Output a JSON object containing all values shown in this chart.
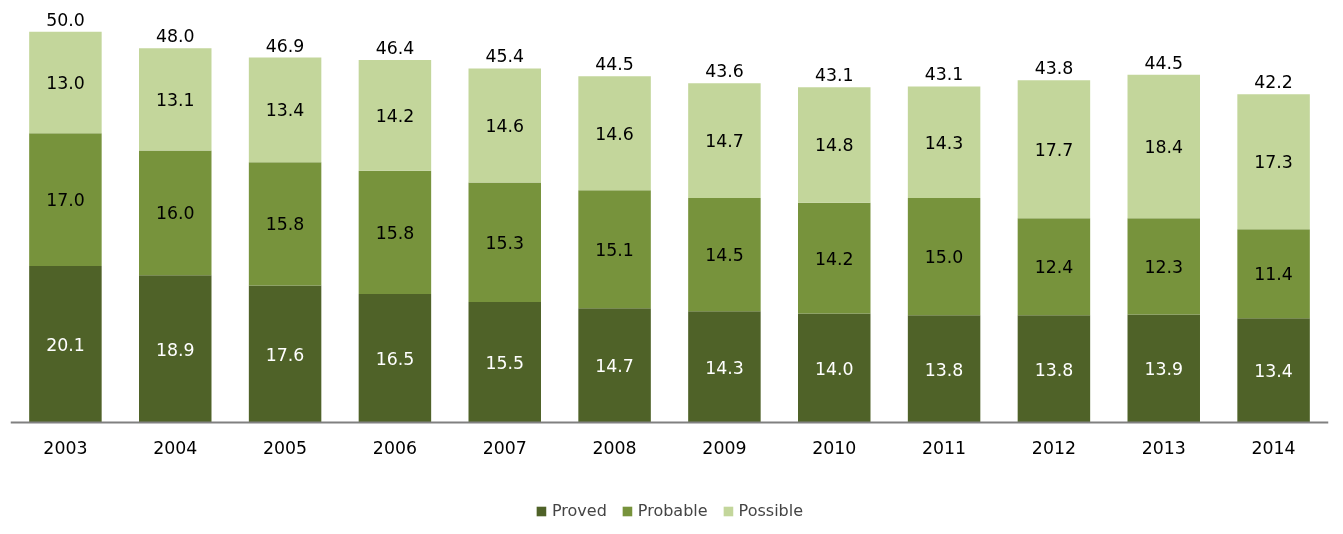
{
  "chart_data": {
    "type": "bar",
    "stacked": true,
    "legend": "bottom",
    "grid": false,
    "categories": [
      "2003",
      "2004",
      "2005",
      "2006",
      "2007",
      "2008",
      "2009",
      "2010",
      "2011",
      "2012",
      "2013",
      "2014"
    ],
    "series": [
      {
        "name": "Proved",
        "color": "#4f6228",
        "values": [
          20.1,
          18.9,
          17.6,
          16.5,
          15.5,
          14.7,
          14.3,
          14.0,
          13.8,
          13.8,
          13.9,
          13.4
        ],
        "value_labels": [
          "20.1",
          "18.9",
          "17.6",
          "16.5",
          "15.5",
          "14.7",
          "14.3",
          "14.0",
          "13.8",
          "13.8",
          "13.9",
          "13.4"
        ]
      },
      {
        "name": "Probable",
        "color": "#77933c",
        "values": [
          17.0,
          16.0,
          15.8,
          15.8,
          15.3,
          15.1,
          14.5,
          14.2,
          15.0,
          12.4,
          12.3,
          11.4
        ],
        "value_labels": [
          "17.0",
          "16.0",
          "15.8",
          "15.8",
          "15.3",
          "15.1",
          "14.5",
          "14.2",
          "15.0",
          "12.4",
          "12.3",
          "11.4"
        ]
      },
      {
        "name": "Possible",
        "color": "#c3d69b",
        "values": [
          13.0,
          13.1,
          13.4,
          14.2,
          14.6,
          14.6,
          14.7,
          14.8,
          14.3,
          17.7,
          18.4,
          17.3
        ],
        "value_labels": [
          "13.0",
          "13.1",
          "13.4",
          "14.2",
          "14.6",
          "14.6",
          "14.7",
          "14.8",
          "14.3",
          "17.7",
          "18.4",
          "17.3"
        ]
      }
    ],
    "totals": [
      "50.0",
      "48.0",
      "46.9",
      "46.4",
      "45.4",
      "44.5",
      "43.6",
      "43.1",
      "43.1",
      "43.8",
      "44.5",
      "42.2"
    ]
  }
}
